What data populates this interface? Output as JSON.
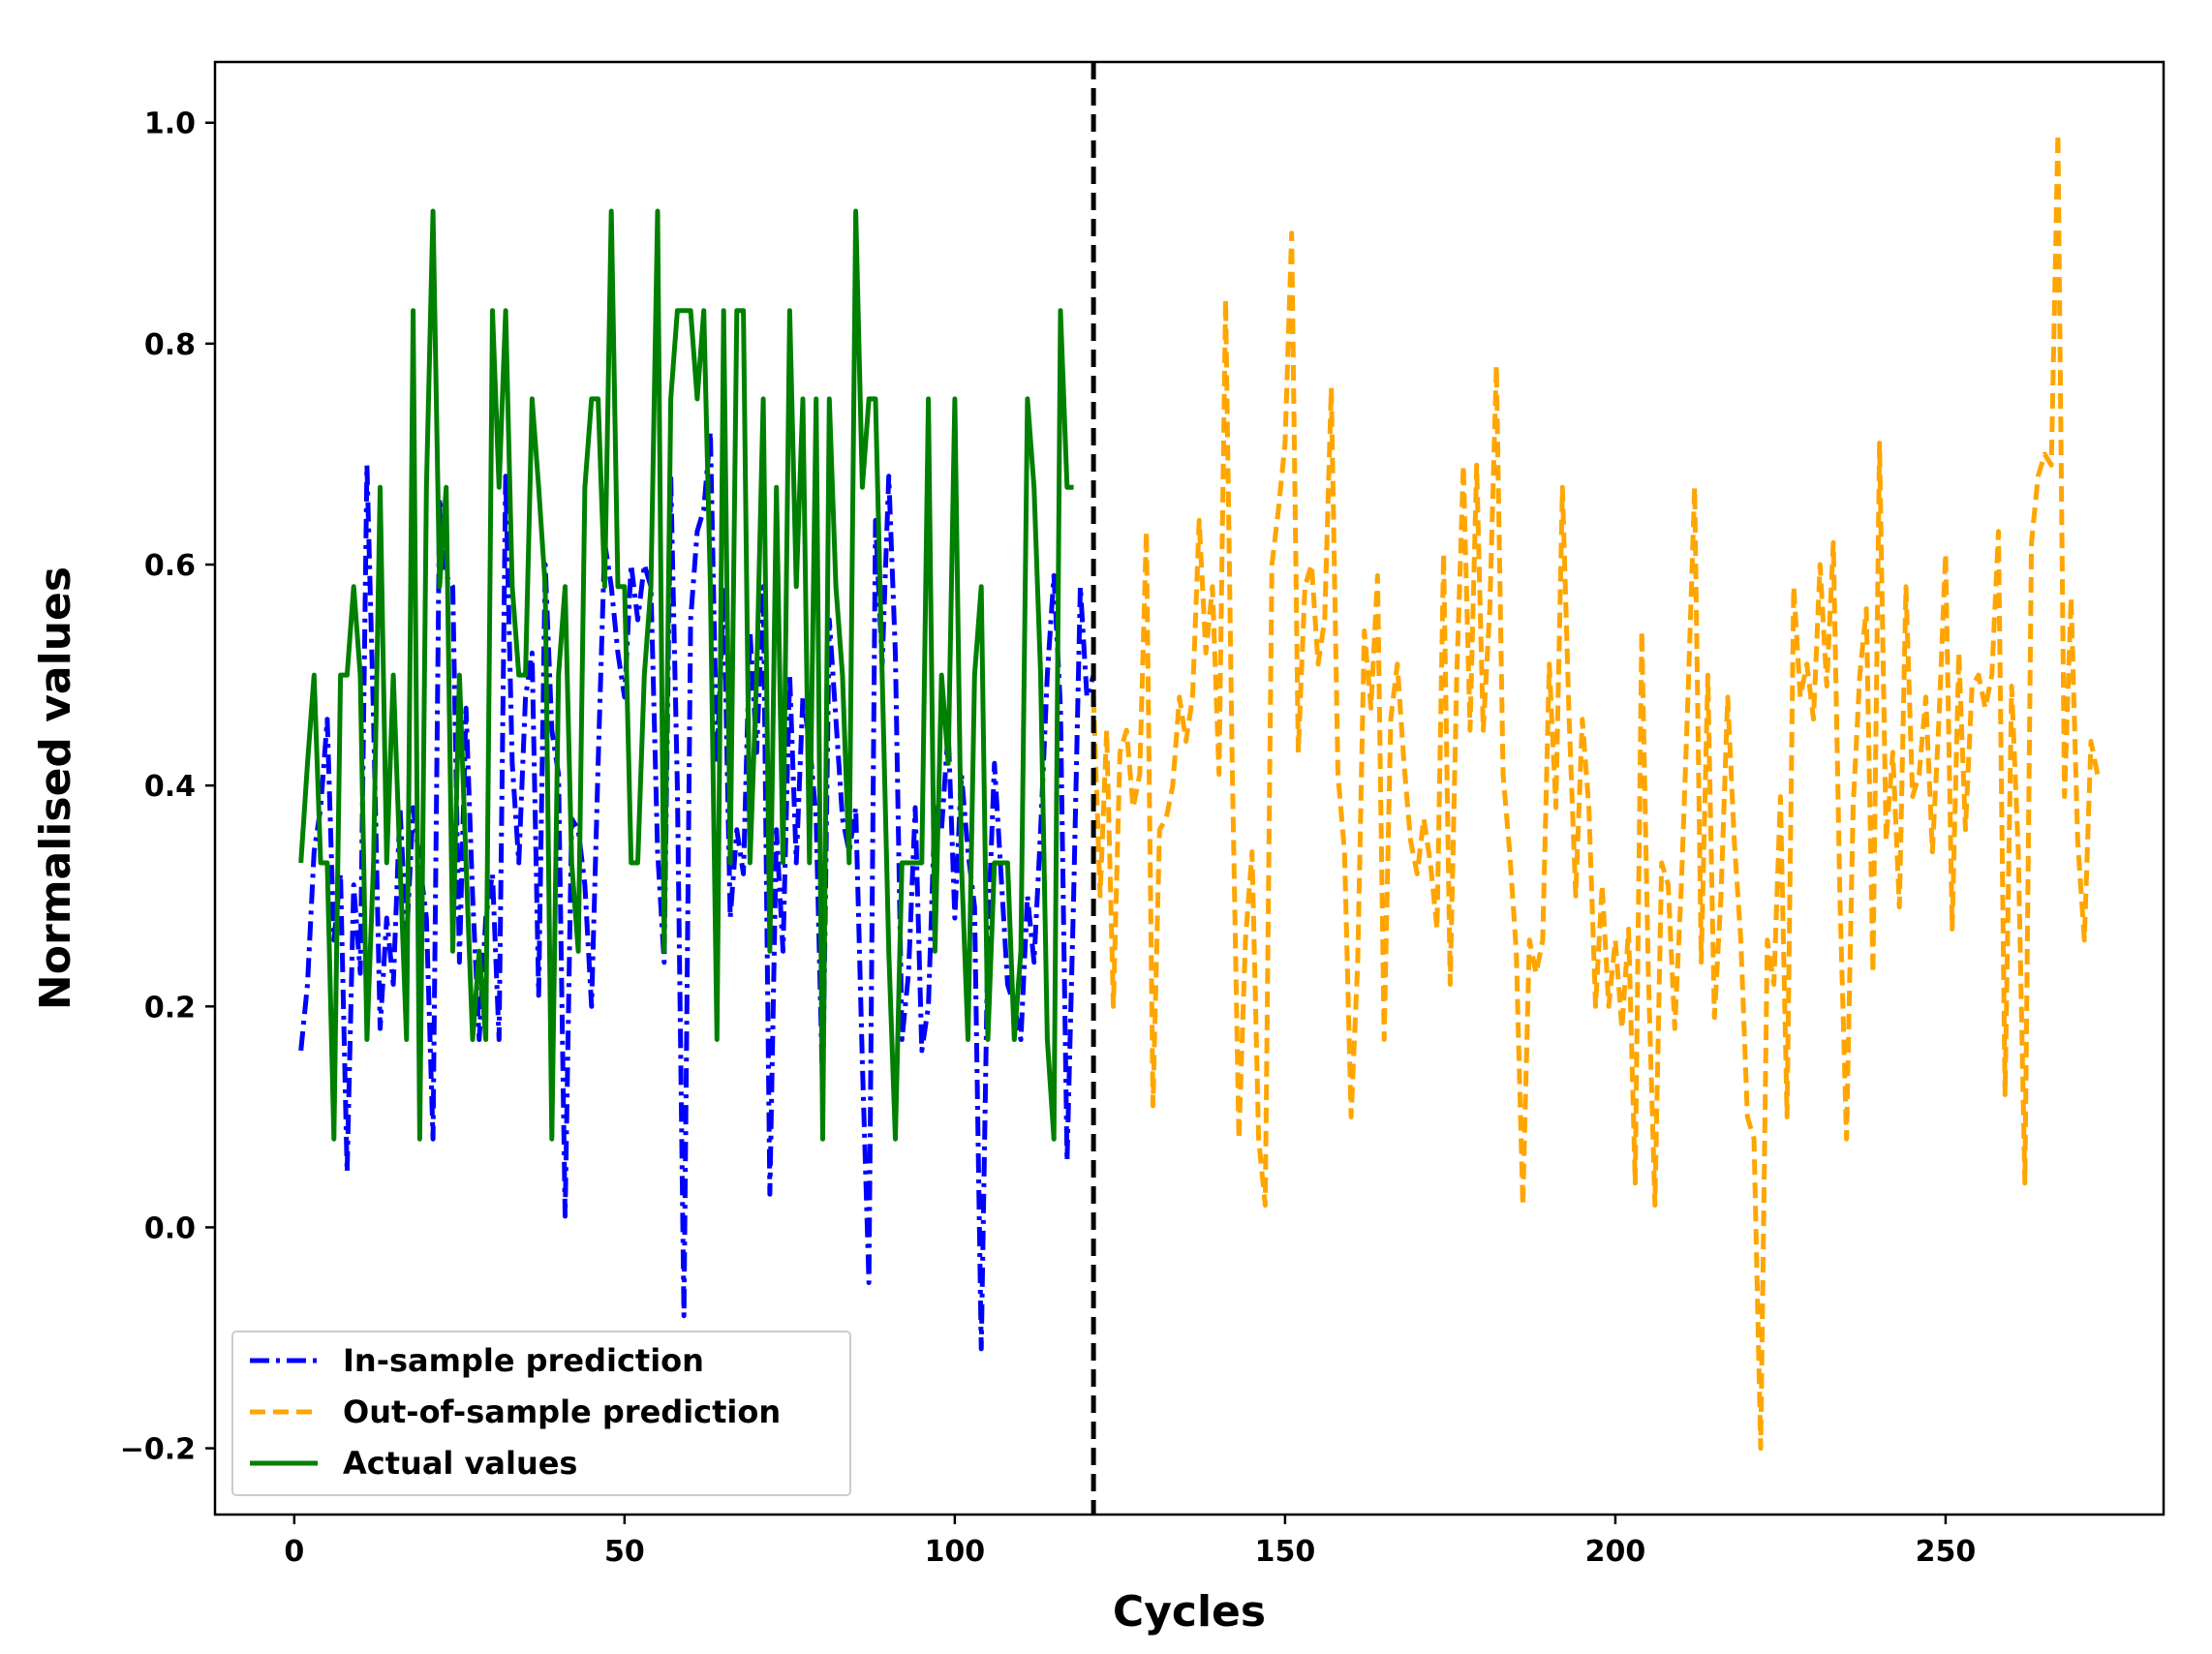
{
  "chart_data": {
    "type": "line",
    "title": "",
    "xlabel": "Cycles",
    "ylabel": "Normalised values",
    "xlim": [
      -12,
      283
    ],
    "ylim": [
      -0.26,
      1.055
    ],
    "xticks": [
      0,
      50,
      100,
      150,
      200,
      250
    ],
    "xtick_labels": [
      "0",
      "50",
      "100",
      "150",
      "200",
      "250"
    ],
    "yticks": [
      -0.2,
      0.0,
      0.2,
      0.4,
      0.6,
      0.8,
      1.0
    ],
    "ytick_labels": [
      "−0.2",
      "0.0",
      "0.2",
      "0.4",
      "0.6",
      "0.8",
      "1.0"
    ],
    "grid": false,
    "legend_position": "bottom-left",
    "split_marker": {
      "x": 121,
      "style": "dashed",
      "color": "#000000"
    },
    "series": [
      {
        "name": "In-sample prediction",
        "color": "#0000ff",
        "style": "dashdot",
        "x_start": 1,
        "values": [
          0.16,
          0.22,
          0.34,
          0.38,
          0.46,
          0.26,
          0.32,
          0.05,
          0.31,
          0.23,
          0.69,
          0.46,
          0.18,
          0.28,
          0.22,
          0.38,
          0.26,
          0.38,
          0.33,
          0.28,
          0.08,
          0.66,
          0.59,
          0.58,
          0.24,
          0.47,
          0.3,
          0.17,
          0.28,
          0.32,
          0.17,
          0.68,
          0.42,
          0.33,
          0.48,
          0.52,
          0.21,
          0.6,
          0.45,
          0.41,
          0.01,
          0.37,
          0.36,
          0.31,
          0.2,
          0.42,
          0.62,
          0.58,
          0.52,
          0.48,
          0.6,
          0.55,
          0.6,
          0.58,
          0.34,
          0.24,
          0.68,
          0.4,
          -0.08,
          0.55,
          0.63,
          0.65,
          0.72,
          0.42,
          0.58,
          0.28,
          0.36,
          0.32,
          0.54,
          0.43,
          0.58,
          0.03,
          0.36,
          0.25,
          0.5,
          0.33,
          0.48,
          0.44,
          0.37,
          0.12,
          0.55,
          0.46,
          0.37,
          0.34,
          0.38,
          0.15,
          -0.05,
          0.64,
          0.51,
          0.68,
          0.52,
          0.17,
          0.23,
          0.38,
          0.16,
          0.2,
          0.38,
          0.36,
          0.45,
          0.28,
          0.41,
          0.34,
          0.29,
          -0.11,
          0.26,
          0.42,
          0.32,
          0.22,
          0.2,
          0.17,
          0.3,
          0.24,
          0.36,
          0.5,
          0.59,
          0.47,
          0.06,
          0.3,
          0.58,
          0.48,
          0.5
        ]
      },
      {
        "name": "Out-of-sample prediction",
        "color": "#ffa500",
        "style": "dashed",
        "x_start": 121,
        "values": [
          0.48,
          0.3,
          0.45,
          0.2,
          0.43,
          0.45,
          0.38,
          0.41,
          0.63,
          0.11,
          0.36,
          0.37,
          0.4,
          0.48,
          0.44,
          0.48,
          0.64,
          0.52,
          0.58,
          0.41,
          0.84,
          0.42,
          0.08,
          0.26,
          0.34,
          0.08,
          0.02,
          0.6,
          0.65,
          0.71,
          0.9,
          0.43,
          0.58,
          0.6,
          0.51,
          0.55,
          0.76,
          0.41,
          0.34,
          0.1,
          0.24,
          0.54,
          0.47,
          0.59,
          0.17,
          0.46,
          0.51,
          0.42,
          0.35,
          0.32,
          0.37,
          0.33,
          0.27,
          0.61,
          0.22,
          0.5,
          0.69,
          0.45,
          0.69,
          0.45,
          0.56,
          0.78,
          0.41,
          0.34,
          0.25,
          0.02,
          0.26,
          0.23,
          0.26,
          0.51,
          0.38,
          0.67,
          0.46,
          0.3,
          0.46,
          0.38,
          0.2,
          0.31,
          0.2,
          0.26,
          0.18,
          0.27,
          0.04,
          0.54,
          0.23,
          0.02,
          0.33,
          0.31,
          0.18,
          0.31,
          0.48,
          0.67,
          0.24,
          0.5,
          0.19,
          0.3,
          0.48,
          0.35,
          0.26,
          0.1,
          0.08,
          -0.2,
          0.26,
          0.22,
          0.39,
          0.1,
          0.58,
          0.48,
          0.51,
          0.46,
          0.6,
          0.49,
          0.62,
          0.3,
          0.08,
          0.38,
          0.5,
          0.56,
          0.23,
          0.71,
          0.35,
          0.43,
          0.29,
          0.58,
          0.39,
          0.41,
          0.48,
          0.34,
          0.46,
          0.61,
          0.27,
          0.52,
          0.36,
          0.49,
          0.5,
          0.47,
          0.5,
          0.63,
          0.12,
          0.49,
          0.34,
          0.04,
          0.62,
          0.68,
          0.7,
          0.69,
          0.99,
          0.39,
          0.57,
          0.35,
          0.26,
          0.44,
          0.41
        ]
      },
      {
        "name": "Actual values",
        "color": "#008000",
        "style": "solid",
        "x_start": 1,
        "values": [
          0.33,
          0.42,
          0.5,
          0.33,
          0.33,
          0.08,
          0.5,
          0.5,
          0.58,
          0.5,
          0.17,
          0.33,
          0.67,
          0.33,
          0.5,
          0.33,
          0.17,
          0.83,
          0.08,
          0.67,
          0.92,
          0.58,
          0.67,
          0.25,
          0.5,
          0.33,
          0.17,
          0.25,
          0.17,
          0.83,
          0.67,
          0.83,
          0.58,
          0.5,
          0.5,
          0.75,
          0.67,
          0.58,
          0.08,
          0.5,
          0.58,
          0.33,
          0.25,
          0.67,
          0.75,
          0.75,
          0.58,
          0.92,
          0.58,
          0.58,
          0.33,
          0.33,
          0.5,
          0.58,
          0.92,
          0.25,
          0.75,
          0.83,
          0.83,
          0.83,
          0.75,
          0.83,
          0.58,
          0.17,
          0.83,
          0.33,
          0.83,
          0.83,
          0.33,
          0.5,
          0.75,
          0.25,
          0.67,
          0.33,
          0.83,
          0.58,
          0.75,
          0.33,
          0.75,
          0.08,
          0.75,
          0.58,
          0.5,
          0.33,
          0.92,
          0.67,
          0.75,
          0.75,
          0.5,
          0.25,
          0.08,
          0.33,
          0.33,
          0.33,
          0.33,
          0.75,
          0.25,
          0.5,
          0.42,
          0.75,
          0.33,
          0.17,
          0.5,
          0.58,
          0.17,
          0.33,
          0.33,
          0.33,
          0.17,
          0.25,
          0.75,
          0.67,
          0.5,
          0.17,
          0.08,
          0.83,
          0.67,
          0.67
        ]
      }
    ]
  }
}
